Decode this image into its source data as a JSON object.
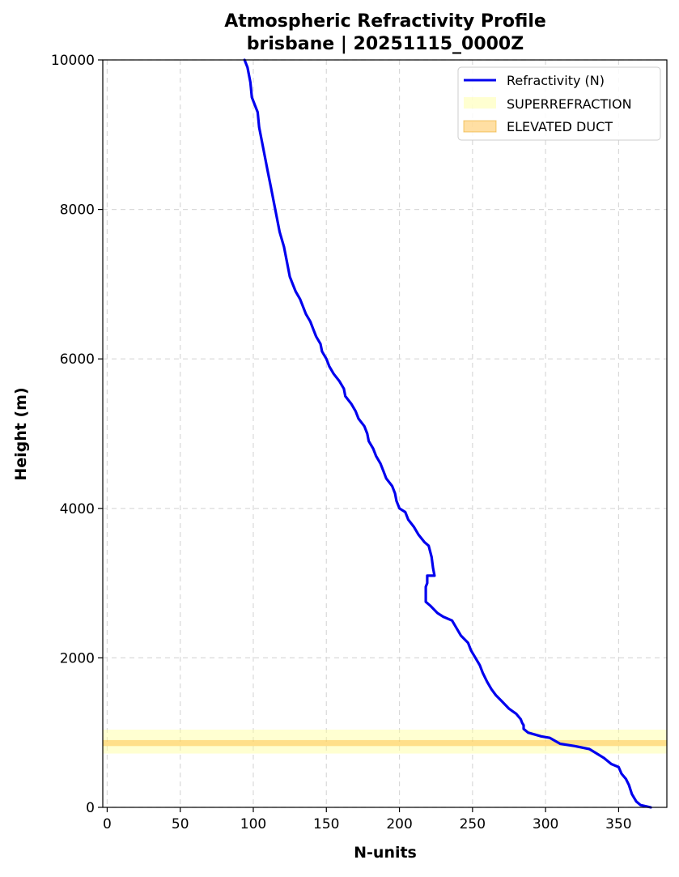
{
  "chart_data": {
    "type": "line",
    "title": [
      "Atmospheric Refractivity Profile",
      "brisbane | 20251115_0000Z"
    ],
    "xlabel": "N-units",
    "ylabel": "Height (m)",
    "xlim": [
      -3,
      383
    ],
    "ylim": [
      0,
      10000
    ],
    "xticks": [
      0,
      50,
      100,
      150,
      200,
      250,
      300,
      350
    ],
    "yticks": [
      0,
      2000,
      4000,
      6000,
      8000,
      10000
    ],
    "grid": true,
    "legend_position": "top-right",
    "series": [
      {
        "name": "Refractivity (N)",
        "color": "#0000ee",
        "points": [
          [
            372,
            0
          ],
          [
            365,
            30
          ],
          [
            362,
            80
          ],
          [
            359,
            180
          ],
          [
            357,
            300
          ],
          [
            355,
            380
          ],
          [
            352,
            450
          ],
          [
            350,
            540
          ],
          [
            345,
            580
          ],
          [
            340,
            660
          ],
          [
            335,
            720
          ],
          [
            330,
            780
          ],
          [
            320,
            820
          ],
          [
            310,
            850
          ],
          [
            303,
            930
          ],
          [
            297,
            950
          ],
          [
            288,
            1000
          ],
          [
            285,
            1050
          ],
          [
            285,
            1100
          ],
          [
            284,
            1130
          ],
          [
            283,
            1180
          ],
          [
            280,
            1250
          ],
          [
            275,
            1320
          ],
          [
            270,
            1420
          ],
          [
            266,
            1500
          ],
          [
            263,
            1580
          ],
          [
            260,
            1680
          ],
          [
            257,
            1800
          ],
          [
            255,
            1900
          ],
          [
            252,
            2000
          ],
          [
            249,
            2100
          ],
          [
            247,
            2200
          ],
          [
            242,
            2300
          ],
          [
            239,
            2400
          ],
          [
            236,
            2500
          ],
          [
            230,
            2550
          ],
          [
            226,
            2600
          ],
          [
            221,
            2700
          ],
          [
            218,
            2750
          ],
          [
            218,
            2800
          ],
          [
            218,
            2850
          ],
          [
            218,
            2950
          ],
          [
            219,
            3000
          ],
          [
            219,
            3100
          ],
          [
            224,
            3100
          ],
          [
            223,
            3200
          ],
          [
            222,
            3350
          ],
          [
            220,
            3500
          ],
          [
            217,
            3550
          ],
          [
            213,
            3650
          ],
          [
            210,
            3750
          ],
          [
            206,
            3850
          ],
          [
            204,
            3950
          ],
          [
            200,
            4000
          ],
          [
            198,
            4100
          ],
          [
            197,
            4200
          ],
          [
            195,
            4300
          ],
          [
            191,
            4400
          ],
          [
            189,
            4500
          ],
          [
            187,
            4600
          ],
          [
            184,
            4700
          ],
          [
            182,
            4800
          ],
          [
            179,
            4900
          ],
          [
            178,
            5000
          ],
          [
            176,
            5100
          ],
          [
            172,
            5200
          ],
          [
            170,
            5300
          ],
          [
            167,
            5400
          ],
          [
            163,
            5500
          ],
          [
            162,
            5600
          ],
          [
            159,
            5700
          ],
          [
            155,
            5800
          ],
          [
            152,
            5900
          ],
          [
            150,
            6000
          ],
          [
            147,
            6100
          ],
          [
            146,
            6200
          ],
          [
            143,
            6300
          ],
          [
            141,
            6400
          ],
          [
            139,
            6500
          ],
          [
            136,
            6600
          ],
          [
            134,
            6700
          ],
          [
            132,
            6800
          ],
          [
            129,
            6900
          ],
          [
            127,
            7000
          ],
          [
            125,
            7100
          ],
          [
            123,
            7300
          ],
          [
            121,
            7500
          ],
          [
            118,
            7700
          ],
          [
            116,
            7900
          ],
          [
            114,
            8100
          ],
          [
            112,
            8300
          ],
          [
            110,
            8500
          ],
          [
            108,
            8700
          ],
          [
            106,
            8900
          ],
          [
            104,
            9100
          ],
          [
            103,
            9300
          ],
          [
            101,
            9400
          ],
          [
            99,
            9500
          ],
          [
            98,
            9700
          ],
          [
            96,
            9900
          ],
          [
            94,
            10000
          ]
        ]
      }
    ],
    "bands": [
      {
        "name": "SUPERREFRACTION",
        "y_range": [
          720,
          1040
        ],
        "color": "#ffff99",
        "opacity": 0.45
      },
      {
        "name": "ELEVATED DUCT",
        "y_range": [
          820,
          900
        ],
        "color": "#ffb733",
        "opacity": 0.45
      }
    ]
  }
}
